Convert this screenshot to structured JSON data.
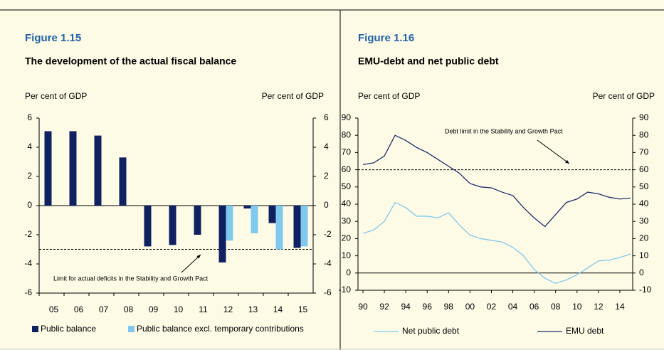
{
  "chart_data": [
    {
      "type": "bar",
      "figure": "Figure 1.15",
      "title": "The development of the actual fiscal balance",
      "ylabel": "Per cent of GDP",
      "y2label": "Per cent of GDP",
      "categories": [
        "05",
        "06",
        "07",
        "08",
        "09",
        "10",
        "11",
        "12",
        "13",
        "14",
        "15"
      ],
      "series": [
        {
          "name": "Public balance",
          "color": "#0f2160",
          "values": [
            5.1,
            5.1,
            4.8,
            3.3,
            -2.8,
            -2.7,
            -2.0,
            -3.9,
            -0.2,
            -1.2,
            -2.9
          ]
        },
        {
          "name": "Public balance excl. temporary contributions",
          "color": "#7fc9ee",
          "values": [
            null,
            null,
            null,
            null,
            null,
            null,
            null,
            -2.4,
            -1.9,
            -3.0,
            -2.8
          ]
        }
      ],
      "ylim": [
        -6,
        6
      ],
      "yticks": [
        -6,
        -4,
        -2,
        0,
        2,
        4,
        6
      ],
      "reference_lines": [
        {
          "value": -3,
          "label": "Limit for actual deficits in the Stability and Growth Pact"
        }
      ]
    },
    {
      "type": "line",
      "figure": "Figure 1.16",
      "title": "EMU-debt and net public debt",
      "ylabel": "Per cent of GDP",
      "y2label": "Per cent of GDP",
      "x": [
        1990,
        1991,
        1992,
        1993,
        1994,
        1995,
        1996,
        1997,
        1998,
        1999,
        2000,
        2001,
        2002,
        2003,
        2004,
        2005,
        2006,
        2007,
        2008,
        2009,
        2010,
        2011,
        2012,
        2013,
        2014,
        2015
      ],
      "series": [
        {
          "name": "Net public debt",
          "color": "#7fc9ee",
          "values": [
            23,
            25,
            30,
            41,
            38,
            33,
            33,
            32,
            35,
            28,
            22,
            20,
            19,
            18,
            15,
            10,
            2,
            -3,
            -6,
            -4,
            -1,
            3,
            7,
            7.5,
            9,
            11
          ]
        },
        {
          "name": "EMU debt",
          "color": "#1f2d6b",
          "values": [
            63,
            64,
            68,
            80,
            77,
            73,
            70,
            66,
            62,
            58,
            52,
            50,
            49.5,
            47,
            45,
            38,
            32,
            27,
            34,
            41,
            43,
            47,
            46,
            44,
            43,
            43.5
          ]
        }
      ],
      "xlim": [
        1990,
        2015
      ],
      "xticks": [
        {
          "value": 1990,
          "label": "90"
        },
        {
          "value": 1992,
          "label": "92"
        },
        {
          "value": 1994,
          "label": "94"
        },
        {
          "value": 1996,
          "label": "96"
        },
        {
          "value": 1998,
          "label": "98"
        },
        {
          "value": 2000,
          "label": "00"
        },
        {
          "value": 2002,
          "label": "02"
        },
        {
          "value": 2004,
          "label": "04"
        },
        {
          "value": 2006,
          "label": "06"
        },
        {
          "value": 2008,
          "label": "08"
        },
        {
          "value": 2010,
          "label": "10"
        },
        {
          "value": 2012,
          "label": "12"
        },
        {
          "value": 2014,
          "label": "14"
        }
      ],
      "ylim": [
        -10,
        90
      ],
      "yticks": [
        -10,
        0,
        10,
        20,
        30,
        40,
        50,
        60,
        70,
        80,
        90
      ],
      "reference_lines": [
        {
          "value": 60,
          "label": "Debt limit in the Stability and Growth Pact"
        }
      ]
    }
  ]
}
